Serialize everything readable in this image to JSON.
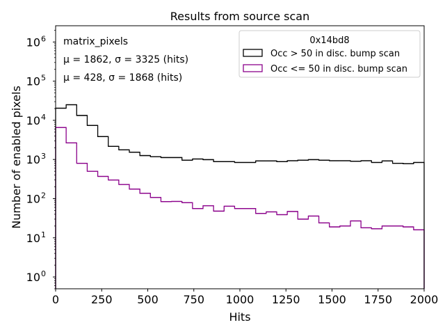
{
  "chart_data": {
    "type": "histogram-step",
    "title": "Results from source scan",
    "xlabel": "Hits",
    "ylabel": "Number of enabled pixels",
    "xlim": [
      0,
      2000
    ],
    "ylim": [
      0.5,
      2600000
    ],
    "yscale": "log",
    "grid": false,
    "x_ticks": [
      0,
      250,
      500,
      750,
      1000,
      1250,
      1500,
      1750,
      2000
    ],
    "x_tick_labels": [
      "0",
      "250",
      "500",
      "750",
      "1000",
      "1250",
      "1500",
      "1750",
      "2000"
    ],
    "y_ticks": [
      1,
      10,
      100,
      1000,
      10000,
      100000,
      1000000
    ],
    "y_tick_labels": [
      {
        "base": "10",
        "exp": "0"
      },
      {
        "base": "10",
        "exp": "1"
      },
      {
        "base": "10",
        "exp": "2"
      },
      {
        "base": "10",
        "exp": "3"
      },
      {
        "base": "10",
        "exp": "4"
      },
      {
        "base": "10",
        "exp": "5"
      },
      {
        "base": "10",
        "exp": "6"
      }
    ],
    "bins": {
      "start": 0,
      "end": 2000,
      "count": 35
    },
    "series": [
      {
        "name": "Occ > 50 in disc. bump scan",
        "color": "#000000",
        "values": [
          20400,
          25000,
          13300,
          7400,
          3840,
          2160,
          1760,
          1530,
          1260,
          1180,
          1120,
          1120,
          960,
          1030,
          990,
          880,
          880,
          840,
          840,
          920,
          920,
          880,
          930,
          960,
          990,
          960,
          930,
          930,
          900,
          930,
          840,
          920,
          800,
          780,
          840
        ]
      },
      {
        "name": "Occ <= 50 in disc. bump scan",
        "color": "#8b008b",
        "values": [
          6550,
          2650,
          800,
          500,
          370,
          300,
          230,
          176,
          137,
          107,
          84,
          85,
          79,
          56,
          66,
          48,
          64,
          56,
          56,
          42,
          46,
          39,
          47,
          30,
          36,
          24,
          19,
          20,
          27,
          18,
          17,
          20,
          20,
          19,
          16
        ]
      }
    ],
    "legend": {
      "title": "0x14bd8",
      "position": "top-right"
    },
    "annotations": [
      {
        "text": "matrix_pixels",
        "color": "#000000"
      },
      {
        "text": "μ = 1862, σ = 3325 (hits)",
        "color": "#000000"
      },
      {
        "text": "μ = 428, σ = 1868 (hits)",
        "color": "#8b008b"
      }
    ]
  }
}
